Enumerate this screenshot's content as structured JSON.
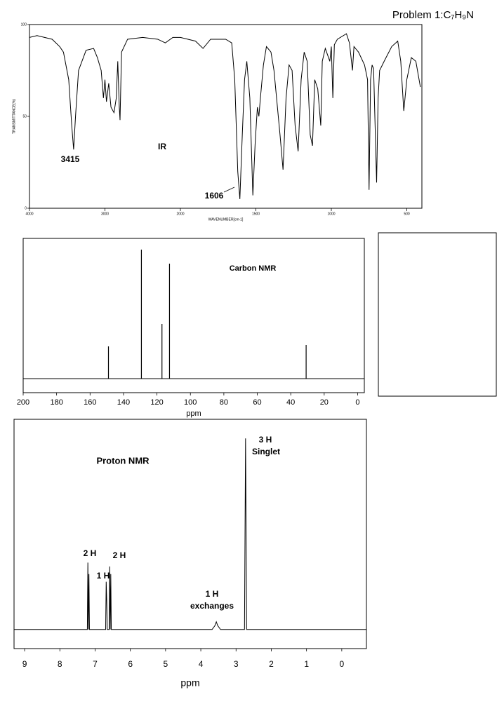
{
  "header": {
    "title": "Problem 1:C₇H₉N"
  },
  "chart_data": [
    {
      "type": "line",
      "label": "IR",
      "color": "#000000",
      "xlabel": "WAVENUMBER[cm-1]",
      "ylabel": "TRANSMITTANCE(%)",
      "x": [
        4000,
        3900,
        3700,
        3600,
        3550,
        3480,
        3440,
        3415,
        3390,
        3350,
        3250,
        3150,
        3100,
        3050,
        3020,
        3000,
        2980,
        2950,
        2920,
        2880,
        2850,
        2830,
        2810,
        2800,
        2780,
        2700,
        2500,
        2300,
        2200,
        2100,
        2000,
        1900,
        1850,
        1800,
        1700,
        1660,
        1640,
        1620,
        1606,
        1590,
        1575,
        1560,
        1540,
        1520,
        1505,
        1490,
        1480,
        1470,
        1450,
        1430,
        1400,
        1380,
        1340,
        1320,
        1300,
        1280,
        1260,
        1240,
        1220,
        1200,
        1180,
        1160,
        1140,
        1125,
        1110,
        1090,
        1070,
        1060,
        1040,
        1010,
        1000,
        990,
        980,
        960,
        900,
        880,
        860,
        850,
        820,
        780,
        760,
        750,
        740,
        730,
        720,
        700,
        690,
        680,
        650,
        600,
        560,
        540,
        520,
        500,
        470,
        440,
        410
      ],
      "values": [
        93,
        94,
        92,
        88,
        85,
        70,
        45,
        32,
        50,
        75,
        86,
        87,
        82,
        75,
        60,
        70,
        58,
        68,
        55,
        52,
        60,
        80,
        55,
        48,
        85,
        92,
        93,
        92,
        90,
        93,
        93,
        91,
        87,
        92,
        92,
        90,
        70,
        20,
        5,
        40,
        70,
        80,
        60,
        7,
        35,
        55,
        50,
        60,
        78,
        88,
        85,
        75,
        40,
        21,
        60,
        78,
        75,
        45,
        31,
        70,
        85,
        80,
        40,
        34,
        70,
        65,
        45,
        80,
        87,
        80,
        88,
        60,
        89,
        92,
        95,
        90,
        75,
        88,
        85,
        78,
        70,
        10,
        70,
        78,
        76,
        14,
        60,
        75,
        80,
        88,
        91,
        80,
        53,
        70,
        82,
        80,
        66
      ],
      "xlim": [
        4000,
        400
      ],
      "xticks": [
        4000,
        3000,
        2000,
        1500,
        1000,
        500
      ],
      "ylim": [
        0,
        100
      ],
      "yticks": [
        0,
        50,
        100
      ],
      "annotations": [
        "3415",
        "1606"
      ]
    },
    {
      "type": "stem",
      "label": "Carbon NMR",
      "color": "#000000",
      "xlabel": "ppm",
      "x": [
        149,
        129.3,
        117,
        112.5,
        30.8
      ],
      "values": [
        23,
        92,
        39,
        82,
        24
      ],
      "xlim": [
        200,
        -4
      ],
      "xticks": [
        200,
        180,
        160,
        140,
        120,
        100,
        80,
        60,
        40,
        20,
        0
      ],
      "ylim": [
        -10,
        100
      ]
    },
    {
      "type": "line",
      "label": "Proton NMR",
      "color": "#000000",
      "xlabel": "ppm",
      "x": [
        9.3,
        7.22,
        7.205,
        7.19,
        7.175,
        7.16,
        6.7,
        6.685,
        6.67,
        6.655,
        6.6,
        6.585,
        6.57,
        6.555,
        6.54,
        3.68,
        3.6,
        3.56,
        3.52,
        3.44,
        2.76,
        2.73,
        2.7,
        -0.7
      ],
      "values": [
        0,
        0,
        35,
        0,
        29,
        0,
        0,
        25,
        15,
        0,
        0,
        33,
        0,
        29,
        0,
        0,
        2,
        4,
        2,
        0,
        0,
        100,
        0,
        0
      ],
      "xlim": [
        9.3,
        -0.7
      ],
      "xticks": [
        9,
        8,
        7,
        6,
        5,
        4,
        3,
        2,
        1,
        0
      ],
      "ylim": [
        -10,
        110
      ],
      "annotations": [
        "2 H",
        "1 H",
        "2 H",
        "1 H",
        "exchanges",
        "3 H",
        "Singlet"
      ]
    }
  ]
}
